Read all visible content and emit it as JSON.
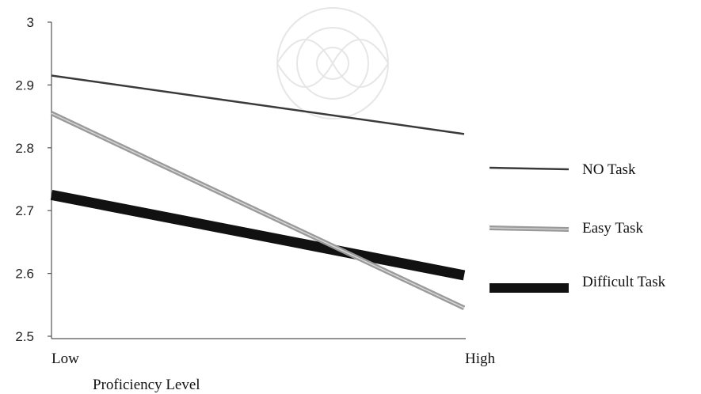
{
  "chart_data": {
    "type": "line",
    "title": "",
    "xlabel": "Proficiency Level",
    "ylabel": "",
    "categories": [
      "Low",
      "High"
    ],
    "ylim": [
      2.5,
      3.0
    ],
    "yticks": [
      "2.5",
      "2.6",
      "2.7",
      "2.8",
      "2.9",
      "3"
    ],
    "grid": false,
    "legend_position": "right",
    "series": [
      {
        "name": "NO Task",
        "values": [
          2.915,
          2.822
        ],
        "color": "#3a3a3a",
        "style": "thin-dark"
      },
      {
        "name": "Easy Task",
        "values": [
          2.855,
          2.545
        ],
        "color": "#9a9a9a",
        "style": "medium-gray"
      },
      {
        "name": "Difficult Task",
        "values": [
          2.725,
          2.597
        ],
        "color": "#111111",
        "style": "thick-black"
      }
    ]
  }
}
